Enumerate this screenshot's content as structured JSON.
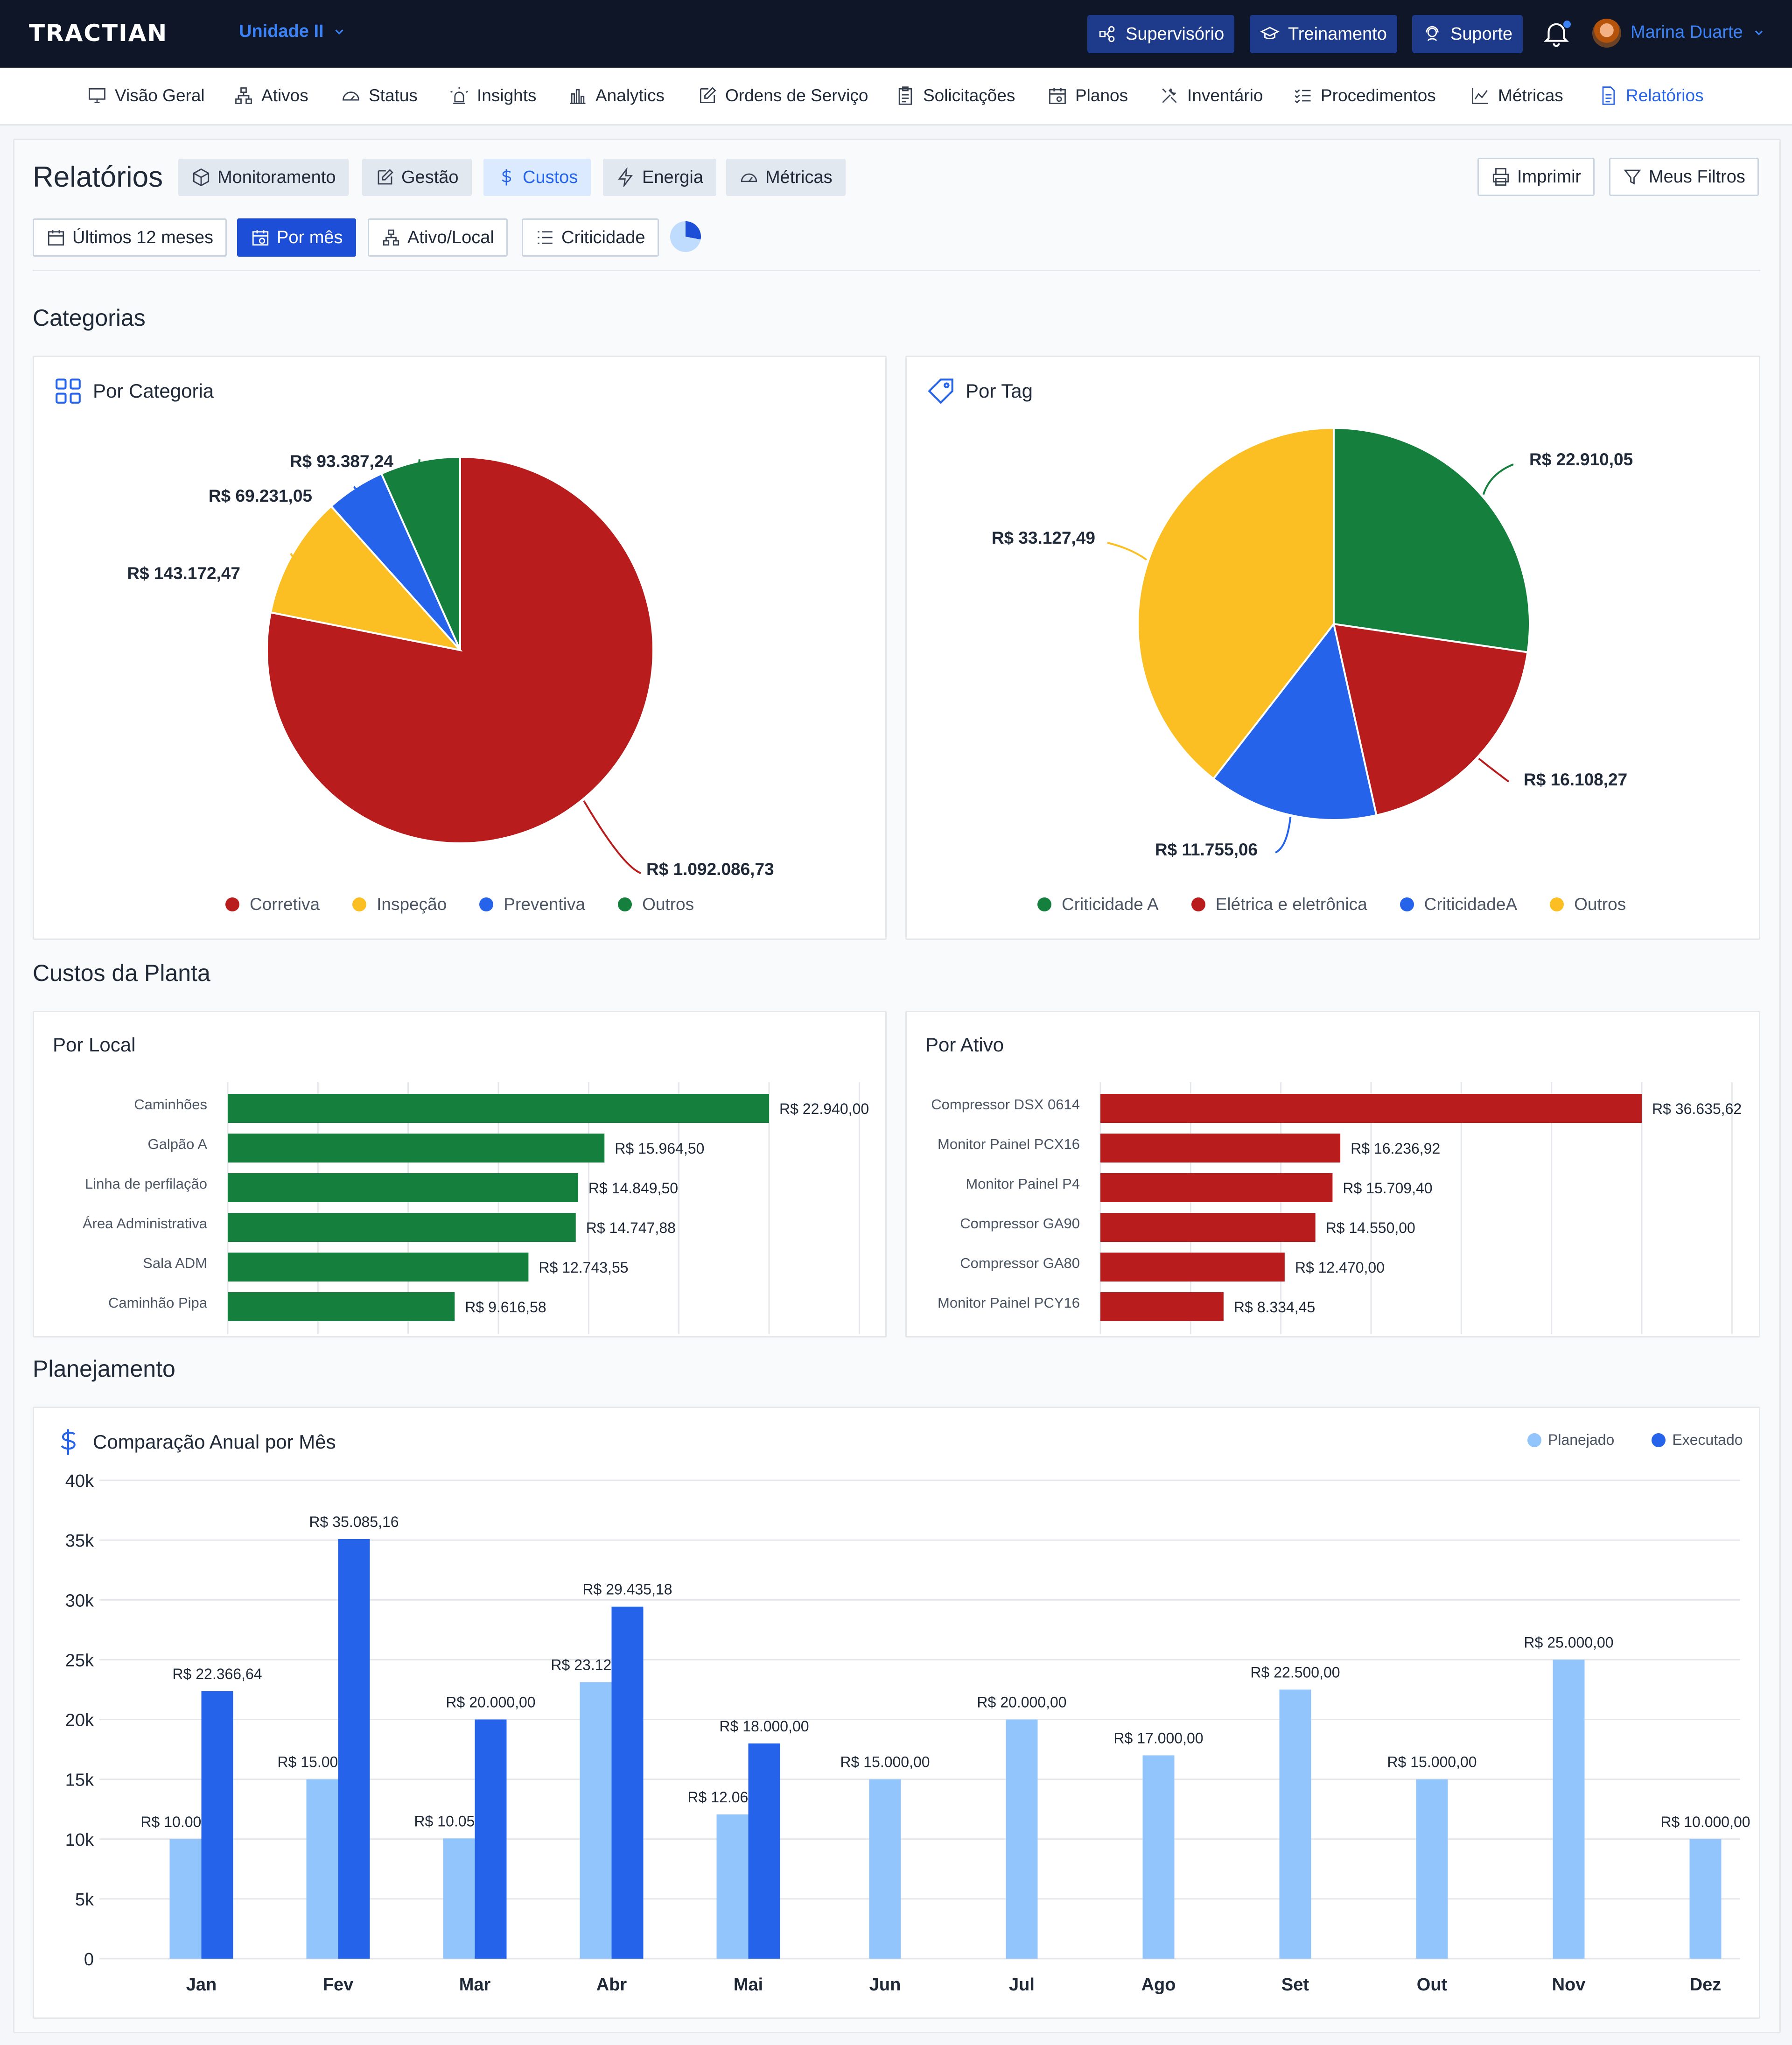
{
  "topbar": {
    "logo": "TRACTIAN",
    "unit": "Unidade II",
    "buttons": [
      "Supervisório",
      "Treinamento",
      "Suporte"
    ],
    "user": "Marina Duarte"
  },
  "nav": {
    "items": [
      {
        "label": "Visão Geral",
        "icon": "monitor-icon"
      },
      {
        "label": "Ativos",
        "icon": "hierarchy-icon"
      },
      {
        "label": "Status",
        "icon": "gauge-icon"
      },
      {
        "label": "Insights",
        "icon": "alarm-icon"
      },
      {
        "label": "Analytics",
        "icon": "bar-chart-icon"
      },
      {
        "label": "Ordens de Serviço",
        "icon": "edit-icon"
      },
      {
        "label": "Solicitações",
        "icon": "clipboard-icon"
      },
      {
        "label": "Planos",
        "icon": "calendar-icon"
      },
      {
        "label": "Inventário",
        "icon": "tools-icon"
      },
      {
        "label": "Procedimentos",
        "icon": "checklist-icon"
      },
      {
        "label": "Métricas",
        "icon": "line-chart-icon"
      },
      {
        "label": "Relatórios",
        "icon": "document-icon"
      }
    ],
    "active": "Relatórios"
  },
  "header": {
    "title": "Relatórios",
    "tabs": [
      "Monitoramento",
      "Gestão",
      "Custos",
      "Energia",
      "Métricas"
    ],
    "active_tab": "Custos",
    "print_label": "Imprimir",
    "filters_label": "Meus Filtros"
  },
  "filters": [
    "Últimos 12 meses",
    "Por mês",
    "Ativo/Local",
    "Criticidade"
  ],
  "active_filter": "Por mês",
  "sections": {
    "categories": "Categorias",
    "plant_costs": "Custos da Planta",
    "planning": "Planejamento"
  },
  "colors": {
    "red": "#b91c1c",
    "yellow": "#fbbf24",
    "blue": "#2563eb",
    "green": "#15803d",
    "light_blue": "#93c5fd",
    "accent": "#2563eb"
  },
  "pie_category": {
    "title": "Por Categoria",
    "chart_data": {
      "type": "pie",
      "slices": [
        {
          "name": "Corretiva",
          "value": 1092086.73,
          "label": "R$ 1.092.086,73",
          "color": "#b91c1c"
        },
        {
          "name": "Inspeção",
          "value": 143172.47,
          "label": "R$ 143.172,47",
          "color": "#fbbf24"
        },
        {
          "name": "Preventiva",
          "value": 69231.05,
          "label": "R$ 69.231,05",
          "color": "#2563eb"
        },
        {
          "name": "Outros",
          "value": 93387.24,
          "label": "R$ 93.387,24",
          "color": "#15803d"
        }
      ],
      "legend": [
        "Corretiva",
        "Inspeção",
        "Preventiva",
        "Outros"
      ]
    }
  },
  "pie_tag": {
    "title": "Por Tag",
    "chart_data": {
      "type": "pie",
      "slices": [
        {
          "name": "Criticidade A",
          "value": 22910.05,
          "label": "R$ 22.910,05",
          "color": "#15803d"
        },
        {
          "name": "Elétrica e eletrônica",
          "value": 16108.27,
          "label": "R$ 16.108,27",
          "color": "#b91c1c"
        },
        {
          "name": "CriticidadeA",
          "value": 11755.06,
          "label": "R$ 11.755,06",
          "color": "#2563eb"
        },
        {
          "name": "Outros",
          "value": 33127.49,
          "label": "R$ 33.127,49",
          "color": "#fbbf24"
        }
      ],
      "legend": [
        "Criticidade A",
        "Elétrica e eletrônica",
        "CriticidadeA",
        "Outros"
      ]
    }
  },
  "bar_local": {
    "title": "Por Local",
    "chart_data": {
      "type": "bar",
      "orientation": "horizontal",
      "categories": [
        "Caminhões",
        "Galpão A",
        "Linha de perfilação",
        "Área Administrativa",
        "Sala ADM",
        "Caminhão Pipa"
      ],
      "values": [
        22940.0,
        15964.5,
        14849.5,
        14747.88,
        12743.55,
        9616.58
      ],
      "labels": [
        "R$ 22.940,00",
        "R$ 15.964,50",
        "R$ 14.849,50",
        "R$ 14.747,88",
        "R$ 12.743,55",
        "R$ 9.616,58"
      ],
      "color": "#15803d"
    }
  },
  "bar_ativo": {
    "title": "Por Ativo",
    "chart_data": {
      "type": "bar",
      "orientation": "horizontal",
      "categories": [
        "Compressor DSX  0614",
        "Monitor Painel PCX16",
        "Monitor Painel P4",
        "Compressor GA90",
        "Compressor GA80",
        "Monitor Painel PCY16"
      ],
      "values": [
        36635.62,
        16236.92,
        15709.4,
        14550.0,
        12470.0,
        8334.45
      ],
      "labels": [
        "R$ 36.635,62",
        "R$ 16.236,92",
        "R$ 15.709,40",
        "R$ 14.550,00",
        "R$ 12.470,00",
        "R$ 8.334,45"
      ],
      "color": "#b91c1c"
    }
  },
  "annual": {
    "title": "Comparação Anual por Mês",
    "chart_data": {
      "type": "bar",
      "categories": [
        "Jan",
        "Fev",
        "Mar",
        "Abr",
        "Mai",
        "Jun",
        "Jul",
        "Ago",
        "Set",
        "Out",
        "Nov",
        "Dez"
      ],
      "series": [
        {
          "name": "Planejado",
          "color": "#93c5fd",
          "values": [
            10000.0,
            15000.0,
            10055.44,
            23124.87,
            12063.27,
            15000.0,
            20000.0,
            17000.0,
            22500.0,
            15000.0,
            25000.0,
            10000.0
          ],
          "labels": [
            "R$ 10.000,00",
            "R$ 15.000,00",
            "R$ 10.055,44",
            "R$ 23.124,87",
            "R$ 12.063,27",
            "R$ 15.000,00",
            "R$ 20.000,00",
            "R$ 17.000,00",
            "R$ 22.500,00",
            "R$ 15.000,00",
            "R$ 25.000,00",
            "R$ 10.000,00"
          ]
        },
        {
          "name": "Executado",
          "color": "#2563eb",
          "values": [
            22366.64,
            35085.16,
            20000.0,
            29435.18,
            18000.0,
            null,
            null,
            null,
            null,
            null,
            null,
            null
          ],
          "labels": [
            "R$ 22.366,64",
            "R$ 35.085,16",
            "R$ 20.000,00",
            "R$ 29.435,18",
            "R$ 18.000,00",
            "",
            "",
            "",
            "",
            "",
            "",
            ""
          ]
        }
      ],
      "ylim": [
        0,
        40000
      ],
      "yticks": [
        "0",
        "5k",
        "10k",
        "15k",
        "20k",
        "25k",
        "30k",
        "35k",
        "40k"
      ],
      "legend": [
        "Planejado",
        "Executado"
      ],
      "legend_position": "top-right"
    }
  }
}
